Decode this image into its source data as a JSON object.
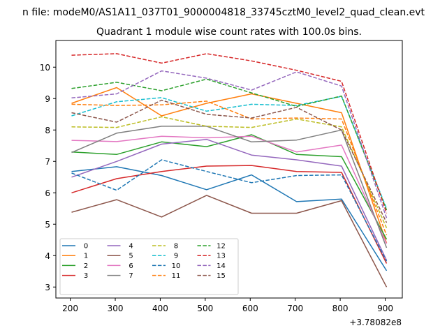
{
  "chart_data": {
    "type": "line",
    "suptitle": "n file: modeM0/AS1A11_037T01_9000004818_33745cztM0_level2_quad_clean.evt",
    "title": "Quadrant 1 module wise count rates with 100.0s bins.",
    "xlabel": "",
    "ylabel": "",
    "x_offset_label": "+3.78082e8",
    "x": [
      203,
      303,
      403,
      503,
      603,
      703,
      803,
      903
    ],
    "xlim": [
      168,
      938
    ],
    "ylim": [
      2.65,
      10.85
    ],
    "x_ticks": [
      200,
      300,
      400,
      500,
      600,
      700,
      800,
      900
    ],
    "y_ticks": [
      3,
      4,
      5,
      6,
      7,
      8,
      9,
      10
    ],
    "grid": false,
    "legend_position": "lower-left",
    "legend_columns": 4,
    "series": [
      {
        "name": "0",
        "color": "#1f77b4",
        "dash": "solid",
        "values": [
          6.68,
          6.83,
          6.55,
          6.1,
          6.57,
          5.72,
          5.8,
          3.52
        ]
      },
      {
        "name": "1",
        "color": "#ff7f0e",
        "dash": "solid",
        "values": [
          8.85,
          9.35,
          8.45,
          8.85,
          9.15,
          8.85,
          8.55,
          4.4
        ]
      },
      {
        "name": "2",
        "color": "#2ca02c",
        "dash": "solid",
        "values": [
          7.3,
          7.22,
          7.62,
          7.47,
          7.85,
          7.22,
          7.15,
          4.52
        ]
      },
      {
        "name": "3",
        "color": "#d62728",
        "dash": "solid",
        "values": [
          6.0,
          6.45,
          6.68,
          6.85,
          6.87,
          6.68,
          6.65,
          3.75
        ]
      },
      {
        "name": "4",
        "color": "#9467bd",
        "dash": "solid",
        "values": [
          6.5,
          7.0,
          7.55,
          7.7,
          7.2,
          7.05,
          6.85,
          3.85
        ]
      },
      {
        "name": "5",
        "color": "#8c564b",
        "dash": "solid",
        "values": [
          5.38,
          5.78,
          5.23,
          5.92,
          5.35,
          5.35,
          5.75,
          3.0
        ]
      },
      {
        "name": "6",
        "color": "#e377c2",
        "dash": "solid",
        "values": [
          7.67,
          7.63,
          7.8,
          7.75,
          7.8,
          7.3,
          7.52,
          4.38
        ]
      },
      {
        "name": "7",
        "color": "#7f7f7f",
        "dash": "solid",
        "values": [
          7.28,
          7.9,
          8.12,
          8.12,
          7.62,
          7.68,
          8.0,
          4.25
        ]
      },
      {
        "name": "8",
        "color": "#bcbd22",
        "dash": "dashed",
        "values": [
          8.1,
          8.08,
          8.42,
          8.12,
          8.08,
          8.35,
          8.1,
          4.88
        ]
      },
      {
        "name": "9",
        "color": "#17becf",
        "dash": "dashed",
        "values": [
          8.45,
          8.9,
          9.03,
          8.6,
          8.82,
          8.78,
          9.07,
          5.5
        ]
      },
      {
        "name": "10",
        "color": "#1f77b4",
        "dash": "dashed",
        "values": [
          6.63,
          6.08,
          7.05,
          6.68,
          6.32,
          6.55,
          6.57,
          3.82
        ]
      },
      {
        "name": "11",
        "color": "#ff7f0e",
        "dash": "dashed",
        "values": [
          8.82,
          8.78,
          8.8,
          8.92,
          8.35,
          8.38,
          8.35,
          4.65
        ]
      },
      {
        "name": "12",
        "color": "#2ca02c",
        "dash": "dashed",
        "values": [
          9.32,
          9.52,
          9.25,
          9.62,
          9.18,
          8.75,
          9.08,
          5.45
        ]
      },
      {
        "name": "13",
        "color": "#d62728",
        "dash": "dashed",
        "values": [
          10.38,
          10.43,
          10.13,
          10.43,
          10.2,
          9.9,
          9.55,
          5.35
        ]
      },
      {
        "name": "14",
        "color": "#9467bd",
        "dash": "dashed",
        "values": [
          9.02,
          9.15,
          9.88,
          9.65,
          9.27,
          9.85,
          9.4,
          5.2
        ]
      },
      {
        "name": "15",
        "color": "#8c564b",
        "dash": "dashed",
        "values": [
          8.55,
          8.25,
          8.95,
          8.5,
          8.38,
          8.72,
          8.0,
          5.05
        ]
      }
    ]
  }
}
